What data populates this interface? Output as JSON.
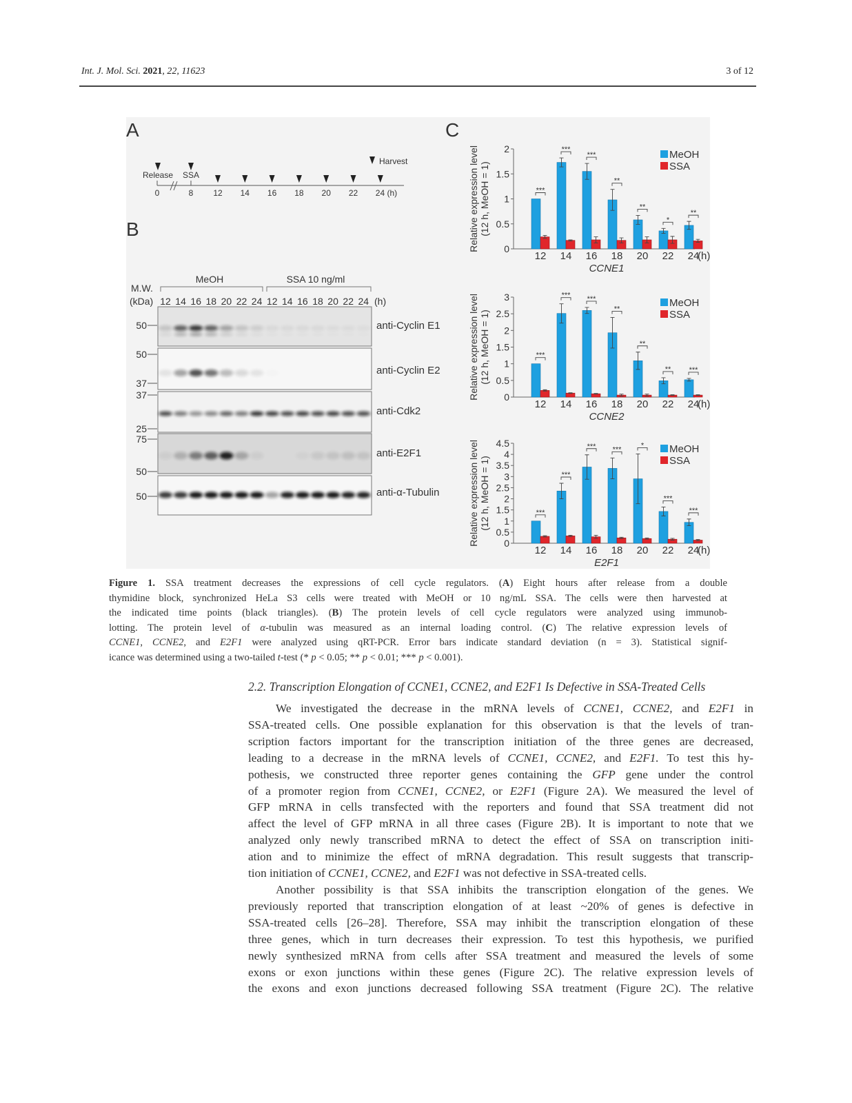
{
  "header": {
    "journal": "Int. J. Mol. Sci.",
    "year": "2021",
    "volume_issue": ", 22, 11623",
    "page": "3 of 12"
  },
  "figure": {
    "panel_labels": [
      "A",
      "B",
      "C"
    ],
    "timeline": {
      "release_label": "Release",
      "ssa_label": "SSA",
      "harvest_label": "Harvest",
      "start": "0",
      "ssa_time": "8",
      "harvest_times": [
        "12",
        "14",
        "16",
        "18",
        "20",
        "22",
        "24 (h)"
      ]
    },
    "blot": {
      "mw_label": "M.W.",
      "kda_label": "(kDa)",
      "groups": [
        "MeOH",
        "SSA 10 ng/ml"
      ],
      "lanes": [
        "12",
        "14",
        "16",
        "18",
        "20",
        "22",
        "24",
        "12",
        "14",
        "16",
        "18",
        "20",
        "22",
        "24"
      ],
      "unit": "(h)",
      "rows": [
        {
          "antibody": "anti-Cyclin E1",
          "markers": [
            "50"
          ],
          "bg": "#e4e4e4",
          "band_intensity": [
            0.15,
            0.6,
            0.8,
            0.6,
            0.3,
            0.15,
            0.1,
            0.05,
            0.05,
            0.05,
            0.05,
            0.04,
            0.04,
            0.03
          ]
        },
        {
          "antibody": "anti-Cyclin E2",
          "markers": [
            "50",
            "37"
          ],
          "bg": "#f7f7f7",
          "band_intensity": [
            0.08,
            0.35,
            0.7,
            0.55,
            0.25,
            0.12,
            0.08,
            0.01,
            0,
            0,
            0,
            0,
            0,
            0
          ]
        },
        {
          "antibody": "anti-Cdk2",
          "markers": [
            "37",
            "25"
          ],
          "bg": "#f2f2f2",
          "band_intensity": [
            0.7,
            0.5,
            0.4,
            0.45,
            0.6,
            0.5,
            0.8,
            0.75,
            0.7,
            0.75,
            0.7,
            0.75,
            0.7,
            0.7
          ]
        },
        {
          "antibody": "anti-E2F1",
          "markers": [
            "75",
            "50"
          ],
          "bg": "#d8d8d8",
          "band_intensity": [
            0.05,
            0.2,
            0.45,
            0.6,
            0.9,
            0.25,
            0.05,
            0,
            0,
            0.03,
            0.08,
            0.1,
            0.12,
            0.1
          ]
        },
        {
          "antibody": "anti-α-Tubulin",
          "markers": [
            "50"
          ],
          "bg": "#f7f7f7",
          "band_intensity": [
            0.8,
            0.8,
            0.95,
            0.95,
            0.95,
            0.95,
            0.95,
            0.35,
            0.9,
            0.95,
            0.95,
            0.95,
            0.9,
            0.9
          ]
        }
      ]
    }
  },
  "colors": {
    "meoh": "#1ea0e0",
    "ssa": "#e0262b",
    "figure_bg": "#f3f3f3"
  },
  "chart_data": [
    {
      "type": "bar",
      "xlabel": "CCNE1",
      "ylabel": "Relative expression level",
      "ylabel2": "(12 h, MeOH = 1)",
      "categories": [
        "12",
        "14",
        "16",
        "18",
        "20",
        "22",
        "24"
      ],
      "x_unit": "(h)",
      "ylim": [
        0,
        2
      ],
      "yticks": [
        "0",
        "0.5",
        "1",
        "1.5",
        "2"
      ],
      "legend": "top-right",
      "series": [
        {
          "name": "MeOH",
          "values": [
            1.0,
            1.73,
            1.55,
            0.98,
            0.58,
            0.36,
            0.47
          ],
          "errors": [
            0,
            0.09,
            0.16,
            0.21,
            0.09,
            0.05,
            0.08
          ]
        },
        {
          "name": "SSA",
          "values": [
            0.24,
            0.17,
            0.18,
            0.17,
            0.18,
            0.18,
            0.16
          ],
          "errors": [
            0.03,
            0.01,
            0.06,
            0.05,
            0.06,
            0.07,
            0.03
          ]
        }
      ],
      "significance": [
        "***",
        "***",
        "***",
        "**",
        "**",
        "*",
        "**"
      ]
    },
    {
      "type": "bar",
      "xlabel": "CCNE2",
      "ylabel": "Relative expression level",
      "ylabel2": "(12 h, MeOH = 1)",
      "categories": [
        "12",
        "14",
        "16",
        "18",
        "20",
        "22",
        "24"
      ],
      "x_unit": "(h)",
      "ylim": [
        0,
        3
      ],
      "yticks": [
        "0",
        "0.5",
        "1",
        "1.5",
        "2",
        "2.5",
        "3"
      ],
      "legend": "top-right",
      "series": [
        {
          "name": "MeOH",
          "values": [
            1.0,
            2.51,
            2.6,
            1.93,
            1.09,
            0.49,
            0.52
          ],
          "errors": [
            0,
            0.29,
            0.09,
            0.46,
            0.26,
            0.09,
            0.04
          ]
        },
        {
          "name": "SSA",
          "values": [
            0.2,
            0.12,
            0.1,
            0.06,
            0.06,
            0.06,
            0.06
          ],
          "errors": [
            0.02,
            0.01,
            0.01,
            0.03,
            0.03,
            0.01,
            0.01
          ]
        }
      ],
      "significance": [
        "***",
        "***",
        "***",
        "**",
        "**",
        "**",
        "***"
      ]
    },
    {
      "type": "bar",
      "xlabel": "E2F1",
      "ylabel": "Relative expression level",
      "ylabel2": "(12 h, MeOH = 1)",
      "categories": [
        "12",
        "14",
        "16",
        "18",
        "20",
        "22",
        "24"
      ],
      "x_unit": "(h)",
      "ylim": [
        0,
        4.5
      ],
      "yticks": [
        "0",
        "0.5",
        "1",
        "1.5",
        "2",
        "2.5",
        "3",
        "3.5",
        "4",
        "4.5"
      ],
      "legend": "top-right",
      "series": [
        {
          "name": "MeOH",
          "values": [
            1.0,
            2.35,
            3.43,
            3.37,
            2.9,
            1.43,
            0.94
          ],
          "errors": [
            0,
            0.35,
            0.55,
            0.47,
            1.12,
            0.2,
            0.15
          ]
        },
        {
          "name": "SSA",
          "values": [
            0.31,
            0.33,
            0.29,
            0.24,
            0.21,
            0.18,
            0.14
          ],
          "errors": [
            0.03,
            0.03,
            0.07,
            0.03,
            0.03,
            0.04,
            0.03
          ]
        }
      ],
      "significance": [
        "***",
        "***",
        "***",
        "***",
        "*",
        "***",
        "***"
      ]
    }
  ],
  "caption": {
    "lines": [
      [
        [
          "Figure 1.",
          "b"
        ],
        [
          " SSA treatment decreases the expressions of cell cycle regulators. (",
          ""
        ],
        [
          "A",
          "b"
        ],
        [
          ") Eight hours after release from a double",
          ""
        ]
      ],
      [
        [
          "thymidine block, synchronized HeLa S3 cells were treated with MeOH or 10 ng/mL SSA. The cells were then harvested at",
          ""
        ]
      ],
      [
        [
          "the indicated time points (black triangles). (",
          ""
        ],
        [
          "B",
          "b"
        ],
        [
          ") The protein levels of cell cycle regulators were analyzed using immunob-",
          ""
        ]
      ],
      [
        [
          "lotting. The protein level of ",
          ""
        ],
        [
          "α",
          "i"
        ],
        [
          "-tubulin was measured as an internal loading control. (",
          ""
        ],
        [
          "C",
          "b"
        ],
        [
          ") The relative expression levels of",
          ""
        ]
      ],
      [
        [
          "CCNE1",
          "i"
        ],
        [
          ", ",
          ""
        ],
        [
          "CCNE2",
          "i"
        ],
        [
          ", and ",
          ""
        ],
        [
          "E2F1",
          "i"
        ],
        [
          " were analyzed using qRT-PCR. Error bars indicate standard deviation (n = 3). Statistical signif-",
          ""
        ]
      ],
      [
        [
          "icance was determined using a two-tailed ",
          ""
        ],
        [
          "t",
          "i"
        ],
        [
          "-test (* ",
          ""
        ],
        [
          "p",
          "i"
        ],
        [
          " < 0.05; ** ",
          ""
        ],
        [
          "p",
          "i"
        ],
        [
          " < 0.01; *** ",
          ""
        ],
        [
          "p",
          "i"
        ],
        [
          " < 0.001).",
          ""
        ]
      ]
    ]
  },
  "section": {
    "heading": "2.2. Transcription Elongation of CCNE1, CCNE2, and E2F1 Is Defective in SSA-Treated Cells"
  },
  "body": {
    "lines": [
      [
        [
          "We investigated the decrease in the mRNA levels of ",
          ""
        ],
        [
          "CCNE1, CCNE2,",
          "i"
        ],
        [
          " and ",
          ""
        ],
        [
          "E2F1",
          "i"
        ],
        [
          " in",
          ""
        ]
      ],
      [
        [
          "SSA-treated cells. One possible explanation for this observation is that the levels of tran-",
          ""
        ]
      ],
      [
        [
          "scription factors important for the transcription initiation of the three genes are decreased,",
          ""
        ]
      ],
      [
        [
          "leading to a decrease in the mRNA levels of ",
          ""
        ],
        [
          "CCNE1, CCNE2,",
          "i"
        ],
        [
          " and ",
          ""
        ],
        [
          "E2F1.",
          "i"
        ],
        [
          " To test this hy-",
          ""
        ]
      ],
      [
        [
          "pothesis, we constructed three reporter genes containing the ",
          ""
        ],
        [
          "GFP",
          "i"
        ],
        [
          " gene under the control",
          ""
        ]
      ],
      [
        [
          "of a promoter region from ",
          ""
        ],
        [
          "CCNE1, CCNE2,",
          "i"
        ],
        [
          " or ",
          ""
        ],
        [
          "E2F1",
          "i"
        ],
        [
          " (Figure 2A). We measured the level of",
          ""
        ]
      ],
      [
        [
          "GFP mRNA in cells transfected with the reporters and found that SSA treatment did not",
          ""
        ]
      ],
      [
        [
          "affect the level of GFP mRNA in all three cases (Figure 2B). It is important to note that we",
          ""
        ]
      ],
      [
        [
          "analyzed only newly transcribed mRNA to detect the effect of SSA on transcription initi-",
          ""
        ]
      ],
      [
        [
          "ation and to minimize the effect of mRNA degradation. This result suggests that transcrip-",
          ""
        ]
      ],
      [
        [
          "tion initiation of ",
          ""
        ],
        [
          "CCNE1, CCNE2,",
          "i"
        ],
        [
          " and ",
          ""
        ],
        [
          "E2F1",
          "i"
        ],
        [
          " was not defective in SSA-treated cells.",
          ""
        ]
      ],
      [
        [
          "Another possibility is that SSA inhibits the transcription elongation of the genes. We",
          ""
        ]
      ],
      [
        [
          "previously reported that transcription elongation of at least ~20% of genes is defective in",
          ""
        ]
      ],
      [
        [
          "SSA-treated cells [26–28]. Therefore, SSA may inhibit the transcription elongation of these",
          ""
        ]
      ],
      [
        [
          "three genes, which in turn decreases their expression. To test this hypothesis, we purified",
          ""
        ]
      ],
      [
        [
          "newly synthesized mRNA from cells after SSA treatment and measured the levels of some",
          ""
        ]
      ],
      [
        [
          "exons or exon junctions within these genes (Figure 2C). The relative expression levels of",
          ""
        ]
      ],
      [
        [
          "the exons and exon junctions decreased following SSA treatment (Figure 2C). The relative",
          ""
        ]
      ]
    ],
    "indent_lines": [
      0,
      11
    ],
    "last_lines": [
      10
    ]
  }
}
